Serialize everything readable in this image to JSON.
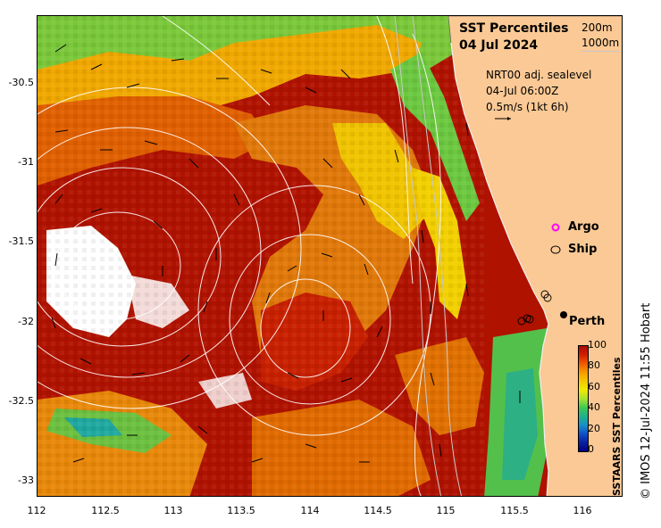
{
  "map": {
    "title_line1": "SST Percentiles",
    "title_line2": "04 Jul 2024",
    "isobath_labels": [
      "200m",
      "1000m"
    ],
    "current_source": "NRT00 adj. sealevel",
    "current_time": "04-Jul 06:00Z",
    "current_scale": "0.5m/s (1kt 6h)",
    "legend": {
      "argo": "Argo",
      "ship": "Ship",
      "argo_color": "#ff00ff",
      "ship_color": "#000000"
    },
    "city": "Perth",
    "land_color": "#fbc995",
    "credit": "© IMOS 12-Jul-2024 11:55 Hobart",
    "colorbar": {
      "title": "SSTAARS SST Percentiles",
      "ticks": [
        "100",
        "80",
        "60",
        "40",
        "20",
        "0"
      ],
      "colors": [
        "#a60a00",
        "#d21f00",
        "#f05a00",
        "#f59a00",
        "#f5c800",
        "#f0ea00",
        "#a9e22e",
        "#40c850",
        "#21b08a",
        "#1890c8",
        "#1050c8",
        "#0a1fa0",
        "#000080"
      ]
    },
    "x_ticks": [
      "112",
      "112.5",
      "113",
      "113.5",
      "114",
      "114.5",
      "115",
      "115.5",
      "116"
    ],
    "y_ticks": [
      "-30.5",
      "-31",
      "-31.5",
      "-32",
      "-32.5",
      "-33"
    ],
    "lon_range": [
      112,
      116.3
    ],
    "lat_range": [
      -33.1,
      -30.1
    ]
  }
}
